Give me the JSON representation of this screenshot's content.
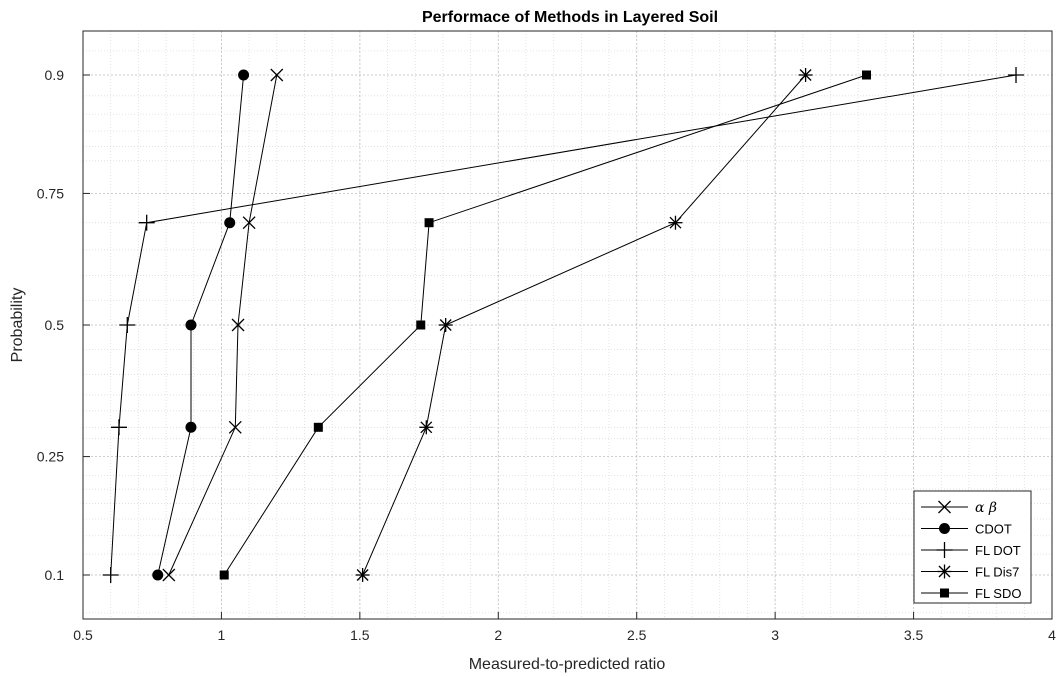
{
  "chart_data": {
    "type": "line",
    "title": "Performace of Methods in Layered Soil",
    "xlabel": "Measured-to-predicted ratio",
    "ylabel": "Probability",
    "xlim": [
      0.5,
      4
    ],
    "xticks": [
      0.5,
      1,
      1.5,
      2,
      2.5,
      3,
      3.5,
      4
    ],
    "xtick_labels": [
      "0.5",
      "1",
      "1.5",
      "2",
      "2.5",
      "3",
      "3.5",
      "4"
    ],
    "y_scale": "normal probability",
    "yticks": [
      0.1,
      0.25,
      0.5,
      0.75,
      0.9
    ],
    "ytick_labels": [
      "0.1",
      "0.25",
      "0.5",
      "0.75",
      "0.9"
    ],
    "grid": "major and minor, dotted",
    "legend_position": "bottom-right",
    "color": "#000000",
    "series": [
      {
        "name": "α  β",
        "marker": "x",
        "x": [
          0.81,
          1.05,
          1.06,
          1.1,
          1.2
        ],
        "y": [
          0.1,
          0.3,
          0.5,
          0.7,
          0.9
        ]
      },
      {
        "name": "CDOT",
        "marker": "circle",
        "x": [
          0.77,
          0.89,
          0.89,
          1.03,
          1.08
        ],
        "y": [
          0.1,
          0.3,
          0.5,
          0.7,
          0.9
        ]
      },
      {
        "name": "FL DOT",
        "marker": "plus",
        "x": [
          0.6,
          0.63,
          0.66,
          0.73,
          3.87
        ],
        "y": [
          0.1,
          0.3,
          0.5,
          0.7,
          0.9
        ]
      },
      {
        "name": "FL Dis7",
        "marker": "asterisk",
        "x": [
          1.51,
          1.74,
          1.81,
          2.64,
          3.11
        ],
        "y": [
          0.1,
          0.3,
          0.5,
          0.7,
          0.9
        ]
      },
      {
        "name": "FL SDO",
        "marker": "square",
        "x": [
          1.01,
          1.35,
          1.72,
          1.75,
          3.33
        ],
        "y": [
          0.1,
          0.3,
          0.5,
          0.7,
          0.9
        ]
      }
    ]
  }
}
